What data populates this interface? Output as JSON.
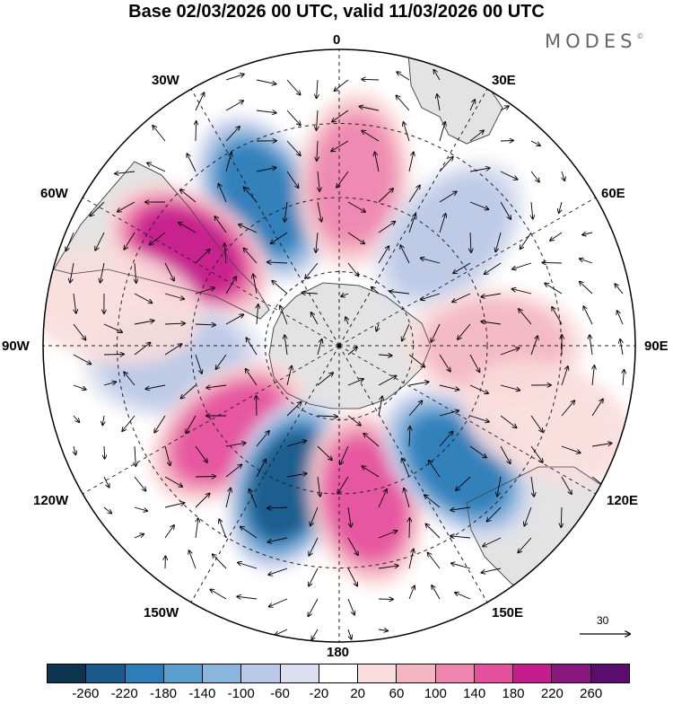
{
  "title": "Base 02/03/2026 00 UTC, valid 11/03/2026 00 UTC",
  "brand": "MODES",
  "brand_mark": "©",
  "longitude_labels": {
    "top": "0",
    "bottom": "180",
    "left": "90W",
    "right": "90E",
    "upper_left": "30W",
    "upper_right": "30E",
    "mid_upper_left": "60W",
    "mid_upper_right": "60E",
    "mid_lower_left": "120W",
    "mid_lower_right": "120E",
    "lower_left": "150W",
    "lower_right": "150E"
  },
  "reference_vector": "30",
  "colorbar": {
    "colors": [
      "#0d3552",
      "#195a8a",
      "#2d7db8",
      "#5aa0cf",
      "#8ab6dd",
      "#b9c9e7",
      "#dcdff0",
      "#ffffff",
      "#f9dcdc",
      "#f4b6c2",
      "#ee86b0",
      "#e4509e",
      "#c41e8c",
      "#8a167f",
      "#5b0d6f"
    ],
    "tick_labels": [
      "-260",
      "-220",
      "-180",
      "-140",
      "-100",
      "-60",
      "-20",
      "20",
      "60",
      "100",
      "140",
      "180",
      "220",
      "260"
    ]
  },
  "anomaly_centers": [
    {
      "lon": -28,
      "lat": -45,
      "value": -200
    },
    {
      "lon": 5,
      "lat": -45,
      "value": 110
    },
    {
      "lon": -58,
      "lat": -42,
      "value": 200
    },
    {
      "lon": 45,
      "lat": -48,
      "value": -70
    },
    {
      "lon": -95,
      "lat": -45,
      "value": -60
    },
    {
      "lon": 90,
      "lat": -48,
      "value": 90
    },
    {
      "lon": -128,
      "lat": -52,
      "value": 150
    },
    {
      "lon": -160,
      "lat": -50,
      "value": -230
    },
    {
      "lon": 170,
      "lat": -48,
      "value": 160
    },
    {
      "lon": 135,
      "lat": -45,
      "value": -200
    },
    {
      "lon": -80,
      "lat": -28,
      "value": 30
    },
    {
      "lon": 110,
      "lat": -30,
      "value": 30
    }
  ]
}
